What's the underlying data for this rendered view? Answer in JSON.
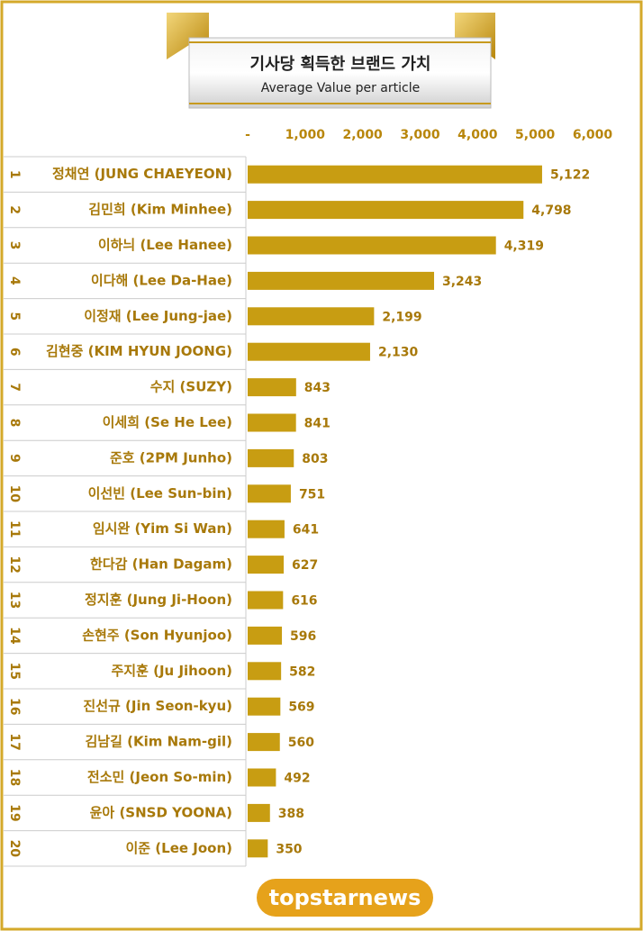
{
  "chart_data": {
    "type": "bar",
    "orientation": "horizontal",
    "title": "기사당 획득한 브랜드 가치",
    "subtitle": "Average Value per article",
    "ranks": [
      1,
      2,
      3,
      4,
      5,
      6,
      7,
      8,
      9,
      10,
      11,
      12,
      13,
      14,
      15,
      16,
      17,
      18,
      19,
      20
    ],
    "categories": [
      "정채연 (JUNG CHAEYEON)",
      "김민희 (Kim Minhee)",
      "이하늬 (Lee Hanee)",
      "이다해 (Lee Da-Hae)",
      "이정재 (Lee Jung-jae)",
      "김현중 (KIM HYUN JOONG)",
      "수지 (SUZY)",
      "이세희 (Se He Lee)",
      "준호 (2PM Junho)",
      "이선빈 (Lee Sun-bin)",
      "임시완 (Yim Si Wan)",
      "한다감 (Han Dagam)",
      "정지훈 (Jung Ji-Hoon)",
      "손현주 (Son Hyunjoo)",
      "주지훈 (Ju Jihoon)",
      "진선규 (Jin Seon-kyu)",
      "김남길 (Kim Nam-gil)",
      "전소민 (Jeon So-min)",
      "윤아 (SNSD YOONA)",
      "이준 (Lee Joon)"
    ],
    "values": [
      5122,
      4798,
      4319,
      3243,
      2199,
      2130,
      843,
      841,
      803,
      751,
      641,
      627,
      616,
      596,
      582,
      569,
      560,
      492,
      388,
      350
    ],
    "value_labels": [
      "5,122",
      "4,798",
      "4,319",
      "3,243",
      "2,199",
      "2,130",
      "843",
      "841",
      "803",
      "751",
      "641",
      "627",
      "616",
      "596",
      "582",
      "569",
      "560",
      "492",
      "388",
      "350"
    ],
    "color": "#c89d12",
    "xlim": [
      0,
      6000
    ],
    "xticks": [
      {
        "value": 0,
        "label": "-"
      },
      {
        "value": 1000,
        "label": "1,000"
      },
      {
        "value": 2000,
        "label": "2,000"
      },
      {
        "value": 3000,
        "label": "3,000"
      },
      {
        "value": 4000,
        "label": "4,000"
      },
      {
        "value": 5000,
        "label": "5,000"
      },
      {
        "value": 6000,
        "label": "6,000"
      }
    ],
    "grid": false,
    "logo": "topstarnews"
  }
}
